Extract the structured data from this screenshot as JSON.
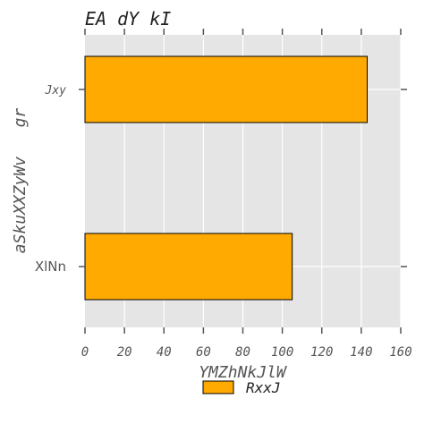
{
  "chart_data": {
    "type": "bar",
    "orientation": "horizontal",
    "title": "EA dY kI",
    "xlabel": "YMZhNkJlW",
    "ylabel": "aSkuXXZyWv   gr",
    "categories": [
      "XlNn",
      "Jxy"
    ],
    "series": [
      {
        "name": "RxxJ",
        "values": [
          105,
          143
        ],
        "color": "#ffaa00"
      }
    ],
    "xlim": [
      0,
      160
    ],
    "xticks": [
      0,
      20,
      40,
      60,
      80,
      100,
      120,
      140,
      160
    ],
    "grid": true,
    "legend_position": "bottom-center",
    "colors": {
      "bar": "#ffaa00",
      "plot_background": "#e5e5e5",
      "grid": "#ffffff",
      "text": "#555555"
    }
  }
}
